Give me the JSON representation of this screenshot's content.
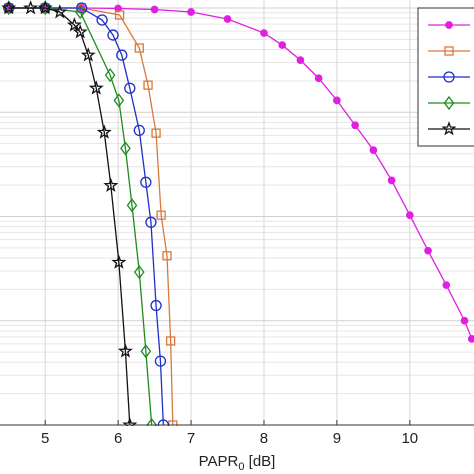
{
  "chart_data": {
    "type": "line",
    "xlabel": [
      "PAPR",
      "0",
      " [dB]"
    ],
    "xlim": [
      4.38,
      10.88
    ],
    "xticks": [
      5,
      6,
      7,
      8,
      9,
      10
    ],
    "ylim": [
      0.0001,
      1
    ],
    "log_y": true,
    "grid": true,
    "legend": "upper right",
    "series": [
      {
        "color": "#e020e0",
        "marker": "dot",
        "x": [
          4.5,
          5,
          5.5,
          6,
          6.5,
          7,
          7.5,
          8,
          8.25,
          8.5,
          8.75,
          9,
          9.25,
          9.5,
          9.75,
          10,
          10.25,
          10.5,
          10.75,
          10.85
        ],
        "values": [
          1,
          1,
          1,
          0.99,
          0.967,
          0.915,
          0.784,
          0.575,
          0.441,
          0.316,
          0.212,
          0.13,
          0.075,
          0.0433,
          0.0222,
          0.0103,
          0.0047,
          0.0022,
          0.001,
          0.00067
        ]
      },
      {
        "color": "#d9793a",
        "marker": "square",
        "x": [
          4.5,
          5,
          5.5,
          6.02,
          6.29,
          6.41,
          6.52,
          6.59,
          6.67,
          6.72,
          6.75
        ],
        "values": [
          1,
          1,
          1,
          0.857,
          0.413,
          0.182,
          0.063,
          0.0103,
          0.0042,
          0.00064,
          0.0001
        ]
      },
      {
        "color": "#1f2fc8",
        "marker": "circle",
        "x": [
          4.5,
          5,
          5.5,
          5.78,
          5.93,
          6.05,
          6.16,
          6.29,
          6.38,
          6.45,
          6.52,
          6.58,
          6.62
        ],
        "values": [
          1,
          1,
          1,
          0.767,
          0.55,
          0.353,
          0.17,
          0.067,
          0.0213,
          0.0088,
          0.0014,
          0.00041,
          0.0001
        ]
      },
      {
        "color": "#1e8c1e",
        "marker": "diamond",
        "x": [
          4.5,
          5,
          5.48,
          5.89,
          6.01,
          6.1,
          6.19,
          6.29,
          6.38,
          6.46
        ],
        "values": [
          1,
          1,
          0.915,
          0.227,
          0.13,
          0.045,
          0.0128,
          0.00293,
          0.00051,
          0.0001
        ]
      },
      {
        "color": "#111111",
        "marker": "star",
        "x": [
          4.5,
          4.8,
          5,
          5.2,
          5.4,
          5.48,
          5.59,
          5.7,
          5.81,
          5.9,
          6.01,
          6.1,
          6.16
        ],
        "values": [
          1,
          1,
          1,
          0.915,
          0.686,
          0.588,
          0.353,
          0.17,
          0.0641,
          0.0198,
          0.00363,
          0.00051,
          0.0001
        ]
      }
    ]
  }
}
